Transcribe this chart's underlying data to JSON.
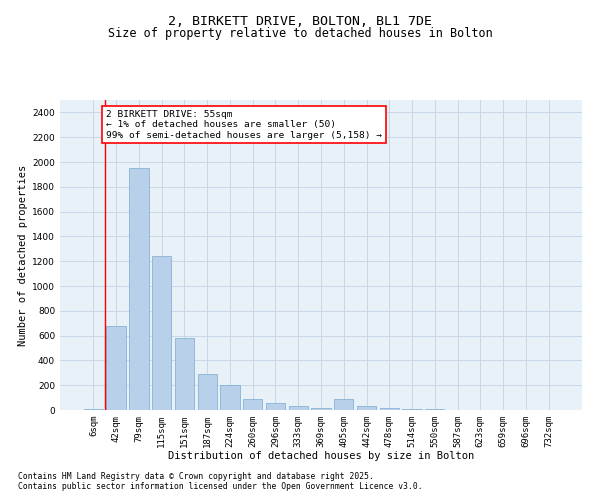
{
  "title_line1": "2, BIRKETT DRIVE, BOLTON, BL1 7DE",
  "title_line2": "Size of property relative to detached houses in Bolton",
  "xlabel": "Distribution of detached houses by size in Bolton",
  "ylabel": "Number of detached properties",
  "categories": [
    "6sqm",
    "42sqm",
    "79sqm",
    "115sqm",
    "151sqm",
    "187sqm",
    "224sqm",
    "260sqm",
    "296sqm",
    "333sqm",
    "369sqm",
    "405sqm",
    "442sqm",
    "478sqm",
    "514sqm",
    "550sqm",
    "587sqm",
    "623sqm",
    "659sqm",
    "696sqm",
    "732sqm"
  ],
  "values": [
    5,
    680,
    1950,
    1240,
    580,
    290,
    200,
    90,
    55,
    30,
    15,
    90,
    30,
    15,
    5,
    5,
    0,
    0,
    0,
    0,
    0
  ],
  "bar_color": "#b8d0ea",
  "bar_edge_color": "#7aaad0",
  "grid_color": "#c8d8e8",
  "background_color": "#e8f0f8",
  "annotation_box_text": "2 BIRKETT DRIVE: 55sqm\n← 1% of detached houses are smaller (50)\n99% of semi-detached houses are larger (5,158) →",
  "annotation_box_color": "#ff0000",
  "ylim": [
    0,
    2500
  ],
  "yticks": [
    0,
    200,
    400,
    600,
    800,
    1000,
    1200,
    1400,
    1600,
    1800,
    2000,
    2200,
    2400
  ],
  "footnote1": "Contains HM Land Registry data © Crown copyright and database right 2025.",
  "footnote2": "Contains public sector information licensed under the Open Government Licence v3.0.",
  "title_fontsize": 9.5,
  "subtitle_fontsize": 8.5,
  "axis_label_fontsize": 7.5,
  "tick_fontsize": 6.5,
  "annotation_fontsize": 6.8,
  "footnote_fontsize": 5.8
}
